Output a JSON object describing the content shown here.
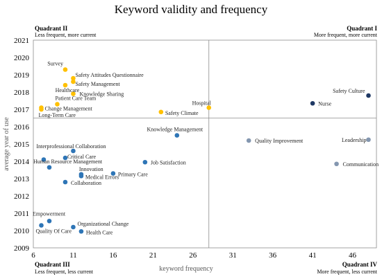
{
  "chart_data": {
    "type": "scatter",
    "title": "Keyword validity and frequency",
    "xlabel": "keyword frequency",
    "ylabel": "average year of use",
    "xlim": [
      6,
      49
    ],
    "ylim": [
      2009,
      2021
    ],
    "x_ticks": [
      6,
      11,
      16,
      21,
      26,
      31,
      36,
      41,
      46
    ],
    "y_ticks": [
      2009,
      2010,
      2011,
      2012,
      2013,
      2014,
      2015,
      2016,
      2017,
      2018,
      2019,
      2020,
      2021
    ],
    "dividers": {
      "x": 28,
      "y": 2016.5
    },
    "grid": false,
    "quadrants": [
      {
        "id": "q2",
        "name": "Quadrant II",
        "desc": "Less frequent, more current",
        "position": "top-left"
      },
      {
        "id": "q1",
        "name": "Quadrant I",
        "desc": "More frequent, more current",
        "position": "top-right"
      },
      {
        "id": "q3",
        "name": "Quadrant III",
        "desc": "Less frequent, less current",
        "position": "bottom-left"
      },
      {
        "id": "q4",
        "name": "Quadrant IV",
        "desc": "More frequent, less current",
        "position": "bottom-right"
      }
    ],
    "colors": {
      "q1": "#1f3864",
      "q2": "#ffc000",
      "q3": "#2e75b6",
      "q4": "#8497b0"
    },
    "points": [
      {
        "label": "Survey",
        "x": 10,
        "y": 2019.3,
        "quadrant": "q2"
      },
      {
        "label": "Safety Attitudes Questionnaire",
        "x": 11,
        "y": 2018.8,
        "quadrant": "q2"
      },
      {
        "label": "Safety Management",
        "x": 11,
        "y": 2018.6,
        "quadrant": "q2"
      },
      {
        "label": "Healthcare",
        "x": 10,
        "y": 2018.4,
        "quadrant": "q2"
      },
      {
        "label": "Knowledge Sharing",
        "x": 11,
        "y": 2017.9,
        "quadrant": "q2"
      },
      {
        "label": "Patient Care Team",
        "x": 9,
        "y": 2017.3,
        "quadrant": "q2"
      },
      {
        "label": "Change Management",
        "x": 7,
        "y": 2017.1,
        "quadrant": "q2"
      },
      {
        "label": "Long-Term Care",
        "x": 7,
        "y": 2017.0,
        "quadrant": "q2"
      },
      {
        "label": "Hospital",
        "x": 28,
        "y": 2017.1,
        "quadrant": "q2"
      },
      {
        "label": "Safety Climate",
        "x": 22,
        "y": 2016.85,
        "quadrant": "q2"
      },
      {
        "label": "Safety Culture",
        "x": 48,
        "y": 2017.8,
        "quadrant": "q1"
      },
      {
        "label": "Nurse",
        "x": 41,
        "y": 2017.35,
        "quadrant": "q1"
      },
      {
        "label": "Knowledge Management",
        "x": 24,
        "y": 2015.5,
        "quadrant": "q3"
      },
      {
        "label": "Interprofessional Collaboration",
        "x": 11,
        "y": 2014.6,
        "quadrant": "q3"
      },
      {
        "label": "Critical Care",
        "x": 10,
        "y": 2014.2,
        "quadrant": "q3"
      },
      {
        "label": "Human Resource Management",
        "x": 8,
        "y": 2013.65,
        "quadrant": "q3"
      },
      {
        "label": "Job Satisfaction",
        "x": 20,
        "y": 2013.95,
        "quadrant": "q3"
      },
      {
        "label": "Innovation",
        "x": 12,
        "y": 2013.25,
        "quadrant": "q3"
      },
      {
        "label": "Medical Errors",
        "x": 12,
        "y": 2013.15,
        "quadrant": "q3"
      },
      {
        "label": "Primary Care",
        "x": 16,
        "y": 2013.3,
        "quadrant": "q3"
      },
      {
        "label": "Collaboration",
        "x": 10,
        "y": 2012.8,
        "quadrant": "q3"
      },
      {
        "label": "",
        "x": 7.3,
        "y": 2014.1,
        "quadrant": "q3"
      },
      {
        "label": "Empowerment",
        "x": 8,
        "y": 2010.55,
        "quadrant": "q3"
      },
      {
        "label": "Quality Of Care",
        "x": 7,
        "y": 2010.3,
        "quadrant": "q3"
      },
      {
        "label": "Organizational Change",
        "x": 11,
        "y": 2010.2,
        "quadrant": "q3"
      },
      {
        "label": "Health Care",
        "x": 12,
        "y": 2009.95,
        "quadrant": "q3"
      },
      {
        "label": "Quality Improvement",
        "x": 33,
        "y": 2015.2,
        "quadrant": "q4"
      },
      {
        "label": "Leadership",
        "x": 48,
        "y": 2015.25,
        "quadrant": "q4"
      },
      {
        "label": "Communication",
        "x": 44,
        "y": 2013.85,
        "quadrant": "q4"
      }
    ]
  }
}
